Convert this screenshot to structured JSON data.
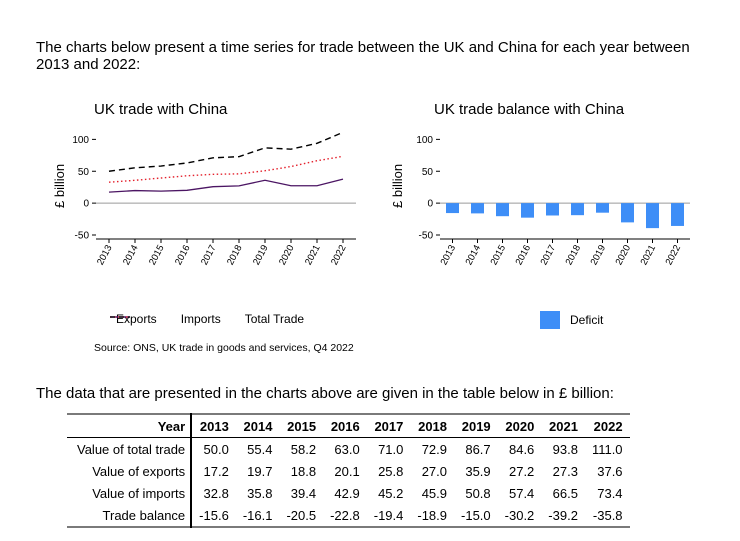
{
  "intro": "The charts below present a time series for trade between the UK and China for each year between 2013 and 2022:",
  "left_chart": {
    "title": "UK trade with China",
    "ylabel": "£ billion",
    "legend": {
      "exports": "Exports",
      "imports": "Imports",
      "total": "Total Trade"
    },
    "source": "Source: ONS, UK trade in goods and services, Q4 2022"
  },
  "right_chart": {
    "title": "UK trade balance with China",
    "ylabel": "£ billion",
    "legend": {
      "deficit": "Deficit"
    }
  },
  "chart_data": [
    {
      "type": "line",
      "title": "UK trade with China",
      "ylabel": "£ billion",
      "x": [
        "2013",
        "2014",
        "2015",
        "2016",
        "2017",
        "2018",
        "2019",
        "2020",
        "2021",
        "2022"
      ],
      "yticks": [
        -50,
        0,
        50,
        100
      ],
      "ylim": [
        -50,
        110
      ],
      "grid": false,
      "legend_position": "bottom",
      "series": [
        {
          "name": "Exports",
          "values": [
            17.2,
            19.7,
            18.8,
            20.1,
            25.8,
            27.0,
            35.9,
            27.2,
            27.3,
            37.6
          ],
          "color": "#4b1563",
          "style": "solid"
        },
        {
          "name": "Imports",
          "values": [
            32.8,
            35.8,
            39.4,
            42.9,
            45.2,
            45.9,
            50.8,
            57.4,
            66.5,
            73.4
          ],
          "color": "#e4202c",
          "style": "dotted"
        },
        {
          "name": "Total Trade",
          "values": [
            50.0,
            55.4,
            58.2,
            63.0,
            71.0,
            72.9,
            86.7,
            84.6,
            93.8,
            111.0
          ],
          "color": "#000000",
          "style": "dashed"
        }
      ]
    },
    {
      "type": "bar",
      "title": "UK trade balance with China",
      "ylabel": "£ billion",
      "categories": [
        "2013",
        "2014",
        "2015",
        "2016",
        "2017",
        "2018",
        "2019",
        "2020",
        "2021",
        "2022"
      ],
      "yticks": [
        -50,
        0,
        50,
        100
      ],
      "ylim": [
        -50,
        110
      ],
      "grid": false,
      "legend_position": "bottom",
      "series": [
        {
          "name": "Deficit",
          "values": [
            -15.6,
            -16.1,
            -20.5,
            -22.8,
            -19.4,
            -18.9,
            -15.0,
            -30.2,
            -39.2,
            -35.8
          ],
          "color": "#3e8ef7"
        }
      ]
    }
  ],
  "table_intro": "The data that are presented in the charts above are given in the table below in £ billion:",
  "table": {
    "header": "Year",
    "years": [
      "2013",
      "2014",
      "2015",
      "2016",
      "2017",
      "2018",
      "2019",
      "2020",
      "2021",
      "2022"
    ],
    "rows": [
      {
        "label": "Value of total trade",
        "values": [
          "50.0",
          "55.4",
          "58.2",
          "63.0",
          "71.0",
          "72.9",
          "86.7",
          "84.6",
          "93.8",
          "111.0"
        ]
      },
      {
        "label": "Value of exports",
        "values": [
          "17.2",
          "19.7",
          "18.8",
          "20.1",
          "25.8",
          "27.0",
          "35.9",
          "27.2",
          "27.3",
          "37.6"
        ]
      },
      {
        "label": "Value of imports",
        "values": [
          "32.8",
          "35.8",
          "39.4",
          "42.9",
          "45.2",
          "45.9",
          "50.8",
          "57.4",
          "66.5",
          "73.4"
        ]
      },
      {
        "label": "Trade balance",
        "values": [
          "-15.6",
          "-16.1",
          "-20.5",
          "-22.8",
          "-19.4",
          "-18.9",
          "-15.0",
          "-30.2",
          "-39.2",
          "-35.8"
        ]
      }
    ]
  }
}
